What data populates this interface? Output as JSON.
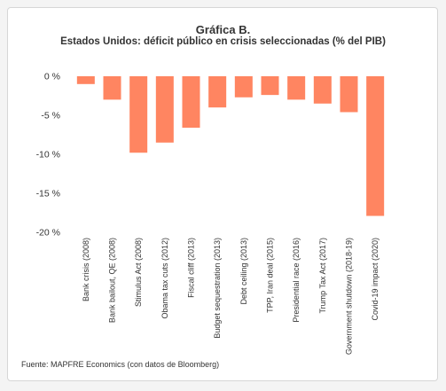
{
  "title": "Gráfica B.",
  "subtitle": "Estados Unidos: déficit público en crisis seleccionadas (% del PIB)",
  "source": "Fuente: MAPFRE Economics (con datos de Bloomberg)",
  "colors": {
    "bar": "#ff8561",
    "axis_text": "#333333",
    "grid": "#e8e8e8"
  },
  "chart_data": {
    "type": "bar",
    "title": "Estados Unidos: déficit público en crisis seleccionadas (% del PIB)",
    "xlabel": "",
    "ylabel": "",
    "categories": [
      "Bank crisis (2008)",
      "Bank bailout, QE (2008)",
      "Stimulus Act (2008)",
      "Obama tax cuts (2012)",
      "Fiscal cliff (2013)",
      "Budget sequestration (2013)",
      "Debt ceiling (2013)",
      "TPP, Iran deal (2015)",
      "Presidential race (2016)",
      "Trump Tax Act (2017)",
      "Government shutdown (2018-19)",
      "Covid-19 impact (2020)"
    ],
    "values": [
      -1.0,
      -3.0,
      -9.8,
      -8.5,
      -6.6,
      -4.0,
      -2.7,
      -2.4,
      -3.0,
      -3.5,
      -4.6,
      -17.9
    ],
    "ylim": [
      -20,
      0
    ],
    "yticks": [
      0,
      -5,
      -10,
      -15,
      -20
    ],
    "ytick_labels": [
      "0 %",
      "-5 %",
      "-10 %",
      "-15 %",
      "-20 %"
    ],
    "grid": false,
    "legend": "none"
  }
}
